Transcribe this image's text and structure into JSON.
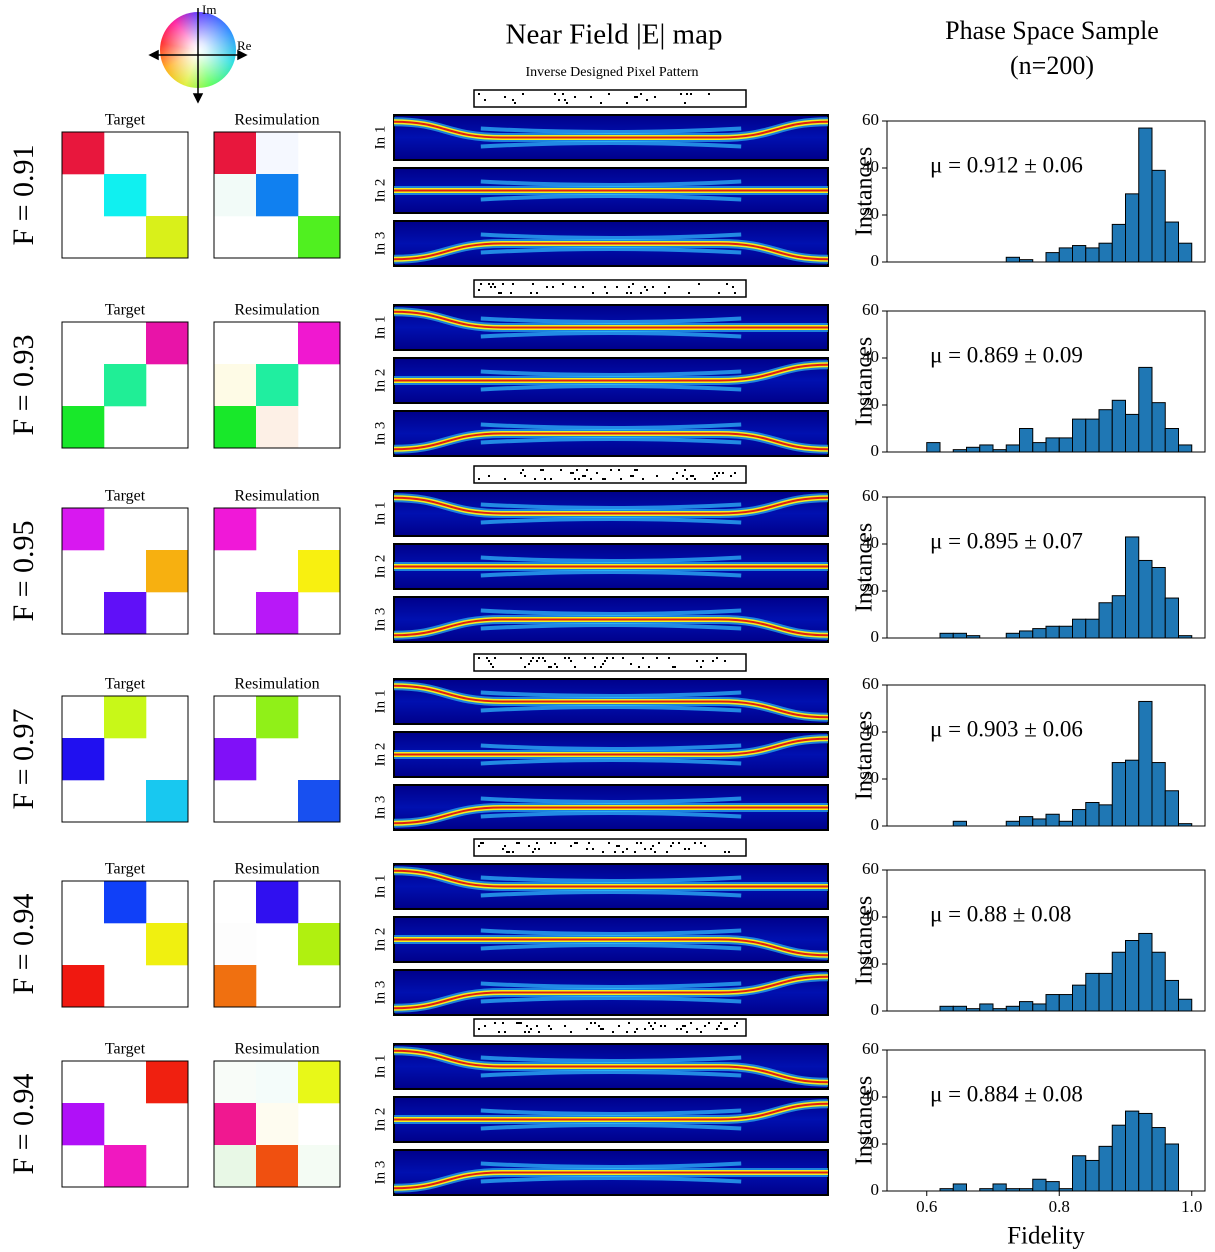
{
  "header": {
    "colorwheel_im": "Im",
    "colorwheel_re": "Re",
    "near_field_title": "Near Field |E| map",
    "pixel_pattern_title": "Inverse Designed Pixel Pattern",
    "phase_space_title": "Phase Space Sample",
    "phase_space_n": "(n=200)",
    "target_label": "Target",
    "resim_label": "Resimulation",
    "inputs": [
      "In 1",
      "In 2",
      "In 3"
    ]
  },
  "rows": [
    {
      "fidelity": "F = 0.91",
      "target": [
        [
          "#e8173d",
          null,
          null
        ],
        [
          null,
          "#10f0f0",
          null
        ],
        [
          null,
          null,
          "#d9f01a"
        ]
      ],
      "resimulation": [
        [
          "#e8173d",
          "#f5f8ff",
          null
        ],
        [
          "#f2fbf8",
          "#1080f0",
          null
        ],
        [
          null,
          null,
          "#50f020"
        ]
      ]
    },
    {
      "fidelity": "F = 0.93",
      "target": [
        [
          null,
          null,
          "#e814a8"
        ],
        [
          null,
          "#20ee96",
          null
        ],
        [
          "#18e82a",
          null,
          null
        ]
      ],
      "resimulation": [
        [
          null,
          null,
          "#f018d0"
        ],
        [
          "#fefbe6",
          "#20eea0",
          null
        ],
        [
          "#18e82a",
          "#fdf0e6",
          null
        ]
      ]
    },
    {
      "fidelity": "F = 0.95",
      "target": [
        [
          "#d818f0",
          null,
          null
        ],
        [
          null,
          null,
          "#f7b010"
        ],
        [
          null,
          "#6010f8",
          null
        ]
      ],
      "resimulation": [
        [
          "#f018d8",
          null,
          null
        ],
        [
          null,
          null,
          "#f8f010"
        ],
        [
          null,
          "#b818f8",
          null
        ]
      ]
    },
    {
      "fidelity": "F = 0.97",
      "target": [
        [
          null,
          "#c8f818",
          null
        ],
        [
          "#2010f0",
          null,
          null
        ],
        [
          null,
          null,
          "#18c8f0"
        ]
      ],
      "resimulation": [
        [
          null,
          "#90f018",
          null
        ],
        [
          "#8010f8",
          null,
          null
        ],
        [
          null,
          null,
          "#1850f0"
        ]
      ]
    },
    {
      "fidelity": "F = 0.94",
      "target": [
        [
          null,
          "#1040f8",
          null
        ],
        [
          null,
          null,
          "#f0f010"
        ],
        [
          "#f01810",
          null,
          null
        ]
      ],
      "resimulation": [
        [
          null,
          "#3010f0",
          null
        ],
        [
          "#fdfdfd",
          null,
          "#b0f010"
        ],
        [
          "#f07010",
          null,
          null
        ]
      ]
    },
    {
      "fidelity": "F = 0.94",
      "target": [
        [
          null,
          null,
          "#f02010"
        ],
        [
          "#b010f8",
          null,
          null
        ],
        [
          null,
          "#f018c0",
          null
        ]
      ],
      "resimulation": [
        [
          "#f8fcf8",
          "#f4fcfa",
          "#e8f818"
        ],
        [
          "#f01890",
          "#fefcf0",
          null
        ],
        [
          "#e8f8e6",
          "#f05010",
          "#f4fcf4"
        ]
      ]
    }
  ],
  "chart_data": [
    {
      "type": "histogram",
      "annotation": "μ = 0.912 ± 0.06",
      "ylabel": "Instances",
      "color": "#1f77b4",
      "bins": [
        0.6,
        0.62,
        0.64,
        0.66,
        0.68,
        0.7,
        0.72,
        0.74,
        0.76,
        0.78,
        0.8,
        0.82,
        0.84,
        0.86,
        0.88,
        0.9,
        0.92,
        0.94,
        0.96,
        0.98,
        1.0
      ],
      "values": [
        0,
        0,
        0,
        0,
        0,
        0,
        2,
        1,
        0,
        4,
        6,
        7,
        6,
        8,
        16,
        29,
        57,
        39,
        17,
        8
      ],
      "xlim": [
        0.54,
        1.02
      ],
      "ylim": [
        0,
        60
      ],
      "yticks": [
        0,
        20,
        40,
        60
      ]
    },
    {
      "type": "histogram",
      "annotation": "μ = 0.869 ± 0.09",
      "ylabel": "Instances",
      "color": "#1f77b4",
      "bins": [
        0.6,
        0.62,
        0.64,
        0.66,
        0.68,
        0.7,
        0.72,
        0.74,
        0.76,
        0.78,
        0.8,
        0.82,
        0.84,
        0.86,
        0.88,
        0.9,
        0.92,
        0.94,
        0.96,
        0.98,
        1.0
      ],
      "values": [
        4,
        0,
        1,
        2,
        3,
        1,
        3,
        10,
        4,
        6,
        6,
        14,
        14,
        18,
        22,
        16,
        36,
        21,
        10,
        3
      ],
      "xlim": [
        0.54,
        1.02
      ],
      "ylim": [
        0,
        60
      ],
      "yticks": [
        0,
        20,
        40,
        60
      ]
    },
    {
      "type": "histogram",
      "annotation": "μ = 0.895 ± 0.07",
      "ylabel": "Instances",
      "color": "#1f77b4",
      "bins": [
        0.6,
        0.62,
        0.64,
        0.66,
        0.68,
        0.7,
        0.72,
        0.74,
        0.76,
        0.78,
        0.8,
        0.82,
        0.84,
        0.86,
        0.88,
        0.9,
        0.92,
        0.94,
        0.96,
        0.98,
        1.0
      ],
      "values": [
        0,
        2,
        2,
        1,
        0,
        0,
        2,
        3,
        4,
        5,
        5,
        8,
        8,
        15,
        18,
        43,
        33,
        30,
        17,
        1
      ],
      "xlim": [
        0.54,
        1.02
      ],
      "ylim": [
        0,
        60
      ],
      "yticks": [
        0,
        20,
        40,
        60
      ]
    },
    {
      "type": "histogram",
      "annotation": "μ = 0.903 ± 0.06",
      "ylabel": "Instances",
      "color": "#1f77b4",
      "bins": [
        0.6,
        0.62,
        0.64,
        0.66,
        0.68,
        0.7,
        0.72,
        0.74,
        0.76,
        0.78,
        0.8,
        0.82,
        0.84,
        0.86,
        0.88,
        0.9,
        0.92,
        0.94,
        0.96,
        0.98,
        1.0
      ],
      "values": [
        0,
        0,
        2,
        0,
        0,
        0,
        2,
        4,
        3,
        5,
        2,
        7,
        10,
        9,
        27,
        28,
        53,
        27,
        15,
        1
      ],
      "xlim": [
        0.54,
        1.02
      ],
      "ylim": [
        0,
        60
      ],
      "yticks": [
        0,
        20,
        40,
        60
      ]
    },
    {
      "type": "histogram",
      "annotation": "μ = 0.88 ± 0.08",
      "ylabel": "Instances",
      "color": "#1f77b4",
      "bins": [
        0.6,
        0.62,
        0.64,
        0.66,
        0.68,
        0.7,
        0.72,
        0.74,
        0.76,
        0.78,
        0.8,
        0.82,
        0.84,
        0.86,
        0.88,
        0.9,
        0.92,
        0.94,
        0.96,
        0.98,
        1.0
      ],
      "values": [
        0,
        2,
        2,
        1,
        3,
        1,
        2,
        4,
        3,
        7,
        7,
        11,
        16,
        16,
        25,
        30,
        33,
        25,
        13,
        5
      ],
      "xlim": [
        0.54,
        1.02
      ],
      "ylim": [
        0,
        60
      ],
      "yticks": [
        0,
        20,
        40,
        60
      ]
    },
    {
      "type": "histogram",
      "annotation": "μ = 0.884 ± 0.08",
      "ylabel": "Instances",
      "xlabel": "Fidelity",
      "color": "#1f77b4",
      "bins": [
        0.6,
        0.62,
        0.64,
        0.66,
        0.68,
        0.7,
        0.72,
        0.74,
        0.76,
        0.78,
        0.8,
        0.82,
        0.84,
        0.86,
        0.88,
        0.9,
        0.92,
        0.94,
        0.96,
        0.98,
        1.0
      ],
      "values": [
        0,
        1,
        3,
        0,
        1,
        3,
        1,
        1,
        5,
        4,
        1,
        15,
        13,
        19,
        28,
        34,
        33,
        27,
        20,
        0
      ],
      "xlim": [
        0.54,
        1.02
      ],
      "ylim": [
        0,
        60
      ],
      "yticks": [
        0,
        20,
        40,
        60
      ],
      "xticks": [
        0.6,
        0.8,
        {
          "value": 1,
          "label": "1.0"
        }
      ]
    }
  ]
}
